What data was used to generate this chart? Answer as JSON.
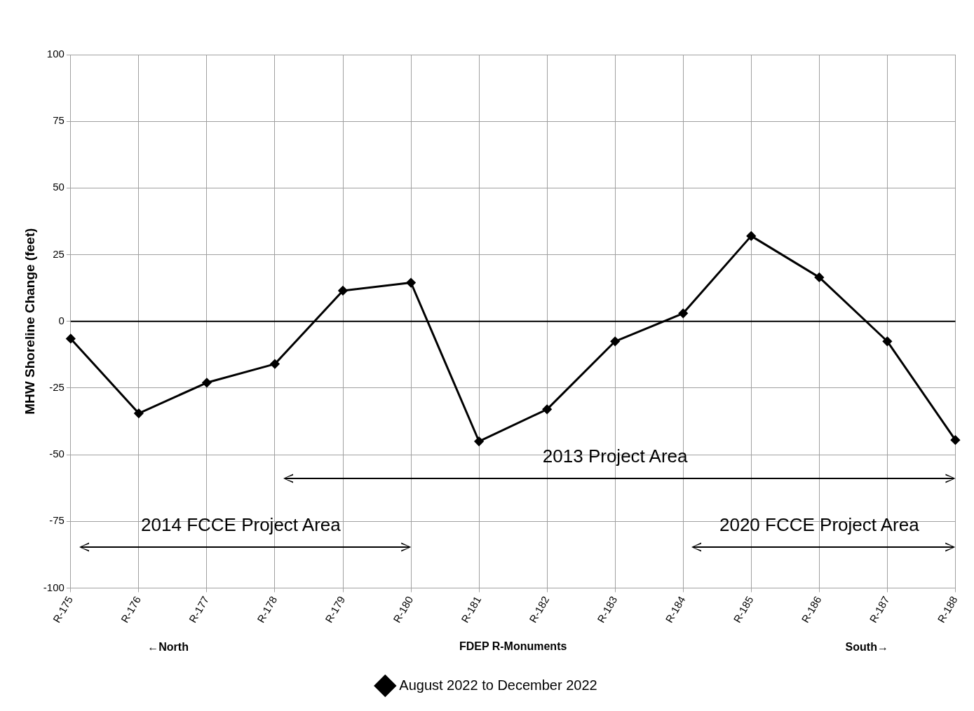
{
  "chart_data": {
    "type": "line",
    "xlabel": "FDEP R-Monuments",
    "ylabel": "MHW Shoreline Change (feet)",
    "categories": [
      "R-175",
      "R-176",
      "R-177",
      "R-178",
      "R-179",
      "R-180",
      "R-181",
      "R-182",
      "R-183",
      "R-184",
      "R-185",
      "R-186",
      "R-187",
      "R-188"
    ],
    "series": [
      {
        "name": "August 2022 to December 2022",
        "color": "#000000",
        "values": [
          -6.5,
          -34.5,
          -23,
          -16,
          11.5,
          14.5,
          -45,
          -33,
          -7.5,
          3,
          32,
          16.5,
          -7.5,
          -44.5
        ]
      }
    ],
    "ylim": [
      -100,
      100
    ],
    "yticks": [
      -100,
      -75,
      -50,
      -25,
      0,
      25,
      50,
      75,
      100
    ],
    "grid": true,
    "legend": "bottom",
    "marker": "diamond",
    "line_style": "solid",
    "ref_lines": [
      {
        "axis": "y",
        "value": 0,
        "color": "#000000"
      }
    ],
    "annotations": [
      "←North",
      "South→",
      "2013 Project Area",
      "2014 FCCE Project Area",
      "2020 FCCE Project Area"
    ]
  }
}
